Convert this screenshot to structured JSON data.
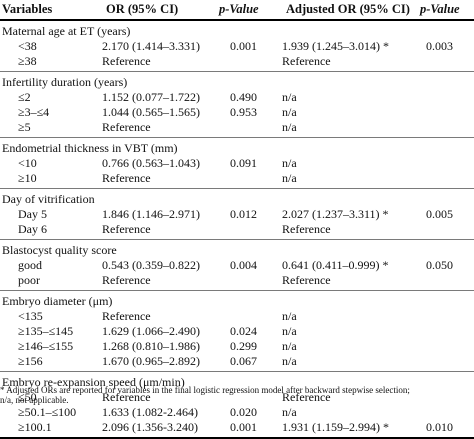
{
  "headers": {
    "variables": "Variables",
    "or": "OR (95% CI)",
    "p": "p-Value",
    "aor": "Adjusted OR (95% CI)",
    "ap": "p-Value"
  },
  "groups": [
    {
      "title": "Maternal age at ET (years)",
      "rows": [
        {
          "var": "<38",
          "or": "2.170 (1.414–3.331)",
          "p": "0.001",
          "aor": "1.939 (1.245–3.014) *",
          "ap": "0.003"
        },
        {
          "var": "≥38",
          "or": "Reference",
          "p": "",
          "aor": "Reference",
          "ap": ""
        }
      ]
    },
    {
      "title": "Infertility duration (years)",
      "rows": [
        {
          "var": "≤2",
          "or": "1.152 (0.077–1.722)",
          "p": "0.490",
          "aor": "n/a",
          "ap": ""
        },
        {
          "var": "≥3–≤4",
          "or": "1.044 (0.565–1.565)",
          "p": "0.953",
          "aor": "n/a",
          "ap": ""
        },
        {
          "var": "≥5",
          "or": "Reference",
          "p": "",
          "aor": "n/a",
          "ap": ""
        }
      ]
    },
    {
      "title": "Endometrial thickness in VBT (mm)",
      "rows": [
        {
          "var": "<10",
          "or": "0.766 (0.563–1.043)",
          "p": "0.091",
          "aor": "n/a",
          "ap": ""
        },
        {
          "var": "≥10",
          "or": "Reference",
          "p": "",
          "aor": "n/a",
          "ap": ""
        }
      ]
    },
    {
      "title": "Day of vitrification",
      "rows": [
        {
          "var": "Day 5",
          "or": "1.846 (1.146–2.971)",
          "p": "0.012",
          "aor": "2.027 (1.237–3.311) *",
          "ap": "0.005"
        },
        {
          "var": "Day 6",
          "or": "Reference",
          "p": "",
          "aor": "Reference",
          "ap": ""
        }
      ]
    },
    {
      "title": "Blastocyst quality score",
      "rows": [
        {
          "var": "good",
          "or": "0.543 (0.359–0.822)",
          "p": "0.004",
          "aor": "0.641 (0.411–0.999) *",
          "ap": "0.050"
        },
        {
          "var": "poor",
          "or": "Reference",
          "p": "",
          "aor": "Reference",
          "ap": ""
        }
      ]
    },
    {
      "title": "Embryo diameter (μm)",
      "rows": [
        {
          "var": "<135",
          "or": "Reference",
          "p": "",
          "aor": "n/a",
          "ap": ""
        },
        {
          "var": "≥135–≤145",
          "or": "1.629 (1.066–2.490)",
          "p": "0.024",
          "aor": "n/a",
          "ap": ""
        },
        {
          "var": "≥146–≤155",
          "or": "1.268 (0.810–1.986)",
          "p": "0.299",
          "aor": "n/a",
          "ap": ""
        },
        {
          "var": "≥156",
          "or": "1.670 (0.965–2.892)",
          "p": "0.067",
          "aor": "n/a",
          "ap": ""
        }
      ]
    },
    {
      "title": "Embryo re-expansion speed (μm/min)",
      "rows": [
        {
          "var": "≤50",
          "or": "Reference",
          "p": "",
          "aor": "Reference",
          "ap": ""
        },
        {
          "var": "≥50.1–≤100",
          "or": "1.633 (1.082-2.464)",
          "p": "0.020",
          "aor": "n/a",
          "ap": ""
        },
        {
          "var": "≥100.1",
          "or": "2.096 (1.356-3.240)",
          "p": "0.001",
          "aor": "1.931 (1.159–2.994) *",
          "ap": "0.010"
        }
      ]
    }
  ],
  "footnote": {
    "line1": "* Adjusted ORs are reported for variables in the final logistic regression model after backward stepwise selection;",
    "line2": "n/a, not applicable."
  }
}
